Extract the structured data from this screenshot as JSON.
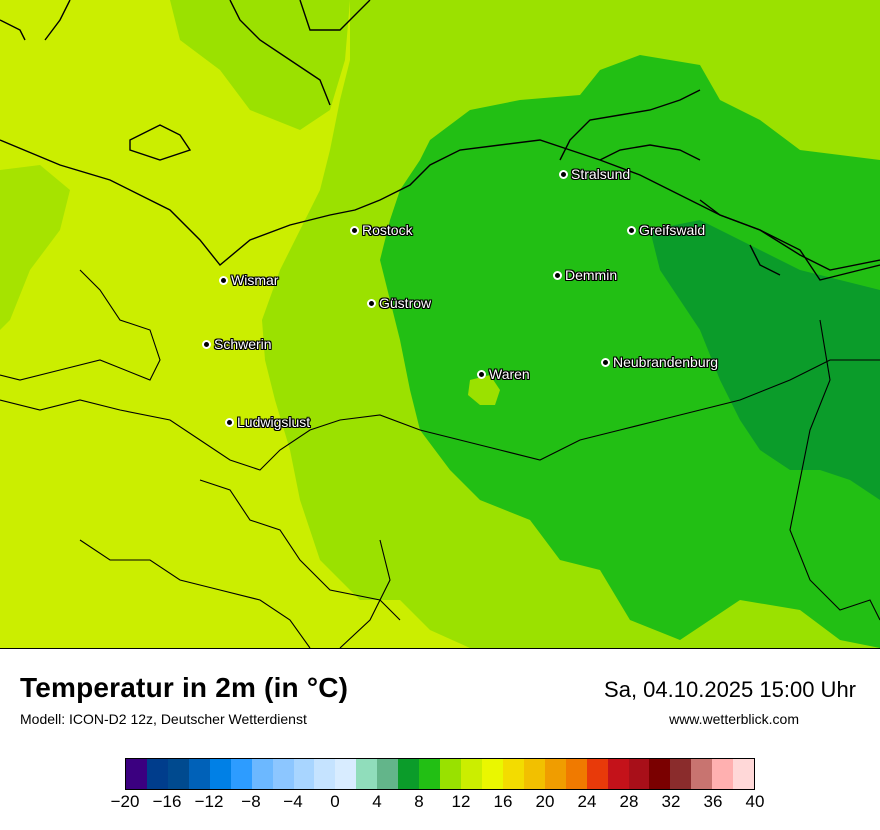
{
  "map": {
    "colors": {
      "warm_band": "#cbee00",
      "mid_band": "#9be100",
      "green_zone": "#22bf14",
      "dark_green_zone": "#0b9c2a",
      "water_lightgreen": "#99e100",
      "coastline": "#000000"
    },
    "cities": [
      {
        "name": "Stralsund"
      },
      {
        "name": "Rostock"
      },
      {
        "name": "Greifswald"
      },
      {
        "name": "Wismar"
      },
      {
        "name": "Demmin"
      },
      {
        "name": "Güstrow"
      },
      {
        "name": "Schwerin"
      },
      {
        "name": "Neubrandenburg"
      },
      {
        "name": "Waren"
      },
      {
        "name": "Ludwigslust"
      }
    ]
  },
  "header": {
    "title": "Temperatur in 2m (in °C)",
    "subtitle": "Modell: ICON-D2 12z, Deutscher Wetterdienst",
    "datetime": "Sa, 04.10.2025 15:00 Uhr",
    "website": "www.wetterblick.com"
  },
  "legend": {
    "colors": [
      "#3b0080",
      "#003d8c",
      "#004a8f",
      "#0061b8",
      "#0080e6",
      "#2d9cff",
      "#6cb8ff",
      "#8cc6ff",
      "#a8d5ff",
      "#c5e3ff",
      "#d8ecff",
      "#90ddbb",
      "#63b58a",
      "#0b9c2a",
      "#22bf14",
      "#99e100",
      "#cbee00",
      "#eaf700",
      "#f3dc00",
      "#f2c000",
      "#f09d00",
      "#f07a00",
      "#e83a0a",
      "#c4121a",
      "#a80f19",
      "#7a0000",
      "#8a2c2c",
      "#c87470",
      "#ffb0b0",
      "#ffd8d8"
    ],
    "ticks": [
      "−20",
      "−16",
      "−12",
      "−8",
      "−4",
      "0",
      "4",
      "8",
      "12",
      "16",
      "20",
      "24",
      "28",
      "32",
      "36",
      "40"
    ]
  }
}
